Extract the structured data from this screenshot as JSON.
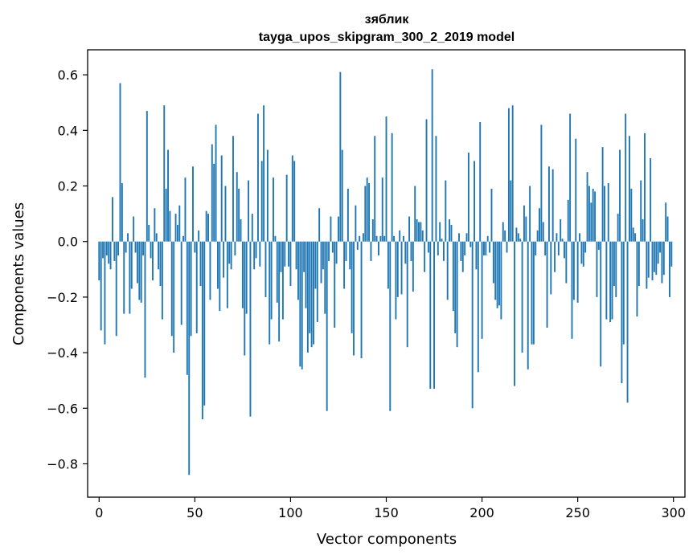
{
  "chart_data": {
    "type": "bar",
    "title": "зяблик",
    "subtitle": "tayga_upos_skipgram_300_2_2019 model",
    "xlabel": "Vector components",
    "ylabel": "Components values",
    "xlim": [
      -6,
      306
    ],
    "ylim": [
      -0.92,
      0.69
    ],
    "xticks": [
      0,
      50,
      100,
      150,
      200,
      250,
      300
    ],
    "xtick_labels": [
      "0",
      "50",
      "100",
      "150",
      "200",
      "250",
      "300"
    ],
    "yticks": [
      0.6,
      0.4,
      0.2,
      0.0,
      -0.2,
      -0.4,
      -0.6,
      -0.8
    ],
    "ytick_labels": [
      "0.6",
      "0.4",
      "0.2",
      "0.0",
      "−0.2",
      "−0.4",
      "−0.6",
      "−0.8"
    ],
    "bar_color": "#1f77b4",
    "grid": false,
    "values": [
      -0.14,
      -0.32,
      -0.06,
      -0.37,
      -0.05,
      -0.08,
      -0.1,
      0.16,
      -0.07,
      -0.34,
      -0.05,
      0.57,
      0.21,
      -0.26,
      -0.04,
      0.03,
      -0.26,
      -0.17,
      0.09,
      -0.04,
      -0.15,
      -0.21,
      -0.22,
      -0.05,
      -0.49,
      0.47,
      0.06,
      -0.06,
      -0.14,
      0.12,
      0.03,
      -0.1,
      -0.16,
      -0.28,
      0.49,
      0.19,
      0.33,
      0.11,
      -0.34,
      -0.4,
      0.1,
      0.06,
      0.13,
      -0.3,
      0.02,
      0.23,
      -0.48,
      -0.84,
      -0.34,
      0.27,
      -0.04,
      -0.33,
      0.04,
      -0.16,
      -0.64,
      -0.59,
      0.11,
      0.1,
      -0.21,
      0.35,
      0.28,
      0.42,
      -0.17,
      -0.25,
      0.31,
      -0.13,
      0.2,
      -0.24,
      -0.08,
      -0.1,
      0.38,
      -0.05,
      0.25,
      0.19,
      0.08,
      -0.24,
      -0.41,
      -0.26,
      0.22,
      -0.63,
      0.1,
      -0.1,
      -0.06,
      0.46,
      -0.09,
      0.29,
      0.49,
      -0.2,
      0.33,
      -0.37,
      -0.28,
      0.23,
      0.02,
      -0.22,
      -0.36,
      -0.11,
      -0.28,
      -0.09,
      0.24,
      -0.09,
      -0.16,
      0.31,
      0.29,
      -0.1,
      -0.21,
      -0.45,
      -0.46,
      -0.11,
      -0.24,
      -0.4,
      -0.33,
      -0.38,
      -0.37,
      -0.17,
      -0.29,
      0.12,
      -0.15,
      -0.1,
      -0.26,
      -0.61,
      -0.07,
      0.09,
      -0.04,
      -0.31,
      -0.08,
      0.09,
      0.61,
      0.33,
      -0.17,
      -0.07,
      0.19,
      -0.1,
      -0.33,
      -0.41,
      0.13,
      -0.03,
      0.02,
      -0.42,
      0.03,
      0.2,
      0.23,
      0.21,
      -0.07,
      0.08,
      0.38,
      0.02,
      -0.05,
      0.02,
      0.23,
      0.02,
      0.45,
      -0.17,
      -0.61,
      0.39,
      0.02,
      -0.28,
      -0.2,
      0.04,
      -0.19,
      0.02,
      -0.08,
      -0.38,
      0.09,
      -0.07,
      -0.18,
      0.2,
      0.08,
      0.07,
      0.07,
      0.04,
      -0.11,
      0.44,
      -0.04,
      -0.53,
      0.62,
      -0.53,
      0.38,
      -0.05,
      0.07,
      0.01,
      -0.07,
      0.22,
      -0.21,
      0.08,
      0.06,
      -0.25,
      -0.33,
      -0.38,
      0.03,
      -0.07,
      -0.11,
      -0.05,
      0.03,
      0.32,
      -0.02,
      -0.6,
      0.29,
      -0.1,
      -0.47,
      0.43,
      -0.35,
      -0.05,
      -0.05,
      0.02,
      -0.04,
      0.19,
      -0.15,
      -0.21,
      -0.24,
      -0.23,
      -0.28,
      0.07,
      0.04,
      -0.04,
      0.48,
      0.22,
      0.49,
      -0.52,
      0.05,
      0.03,
      0.01,
      -0.4,
      0.13,
      0.09,
      -0.46,
      0.2,
      -0.37,
      -0.37,
      -0.05,
      0.04,
      0.12,
      0.42,
      0.07,
      -0.05,
      -0.31,
      0.27,
      -0.19,
      0.26,
      -0.11,
      0.03,
      -0.05,
      0.08,
      0.01,
      -0.06,
      -0.15,
      0.15,
      0.46,
      -0.35,
      -0.21,
      0.37,
      -0.22,
      0.03,
      -0.08,
      -0.09,
      -0.04,
      0.25,
      0.2,
      0.14,
      0.19,
      0.18,
      -0.2,
      -0.03,
      -0.45,
      0.34,
      0.2,
      -0.28,
      0.21,
      -0.29,
      -0.28,
      -0.16,
      -0.2,
      0.1,
      0.33,
      -0.51,
      -0.37,
      0.46,
      -0.58,
      0.38,
      0.19,
      0.05,
      0.03,
      -0.27,
      -0.16,
      0.22,
      0.08,
      0.39,
      -0.17,
      -0.13,
      0.3,
      -0.14,
      -0.11,
      -0.12,
      -0.08,
      -0.04,
      -0.15,
      -0.12,
      0.14,
      0.09,
      -0.2,
      -0.09
    ],
    "values_override_note_removed": true
  }
}
